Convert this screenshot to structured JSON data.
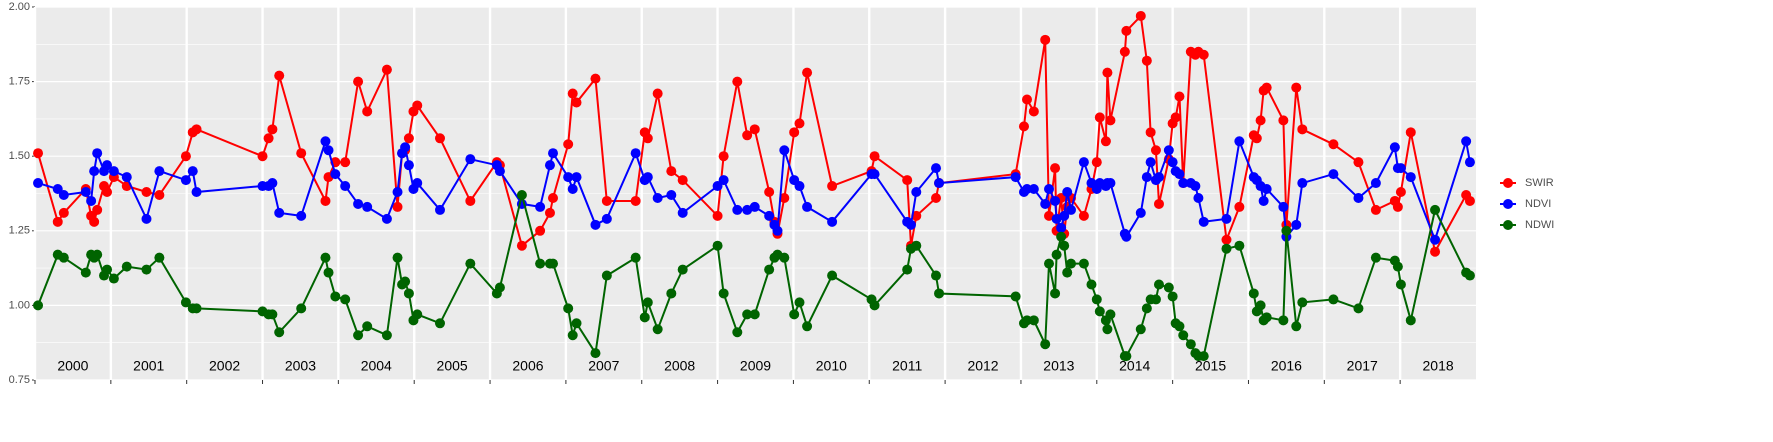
{
  "chart_data": {
    "type": "line",
    "x": [
      2000.04,
      2000.3,
      2000.38,
      2000.67,
      2000.74,
      2000.78,
      2000.82,
      2000.91,
      2000.95,
      2001.04,
      2001.21,
      2001.47,
      2001.64,
      2001.99,
      2002.08,
      2002.13,
      2003.0,
      2003.08,
      2003.13,
      2003.22,
      2003.51,
      2003.83,
      2003.87,
      2003.96,
      2004.09,
      2004.26,
      2004.38,
      2004.64,
      2004.78,
      2004.84,
      2004.88,
      2004.93,
      2004.99,
      2005.04,
      2005.34,
      2005.74,
      2006.09,
      2006.13,
      2006.42,
      2006.66,
      2006.79,
      2006.83,
      2007.03,
      2007.09,
      2007.14,
      2007.39,
      2007.54,
      2007.92,
      2008.04,
      2008.08,
      2008.21,
      2008.39,
      2008.54,
      2009.0,
      2009.08,
      2009.26,
      2009.39,
      2009.49,
      2009.68,
      2009.75,
      2009.79,
      2009.88,
      2010.01,
      2010.08,
      2010.18,
      2010.51,
      2011.03,
      2011.07,
      2011.5,
      2011.55,
      2011.62,
      2011.88,
      2011.92,
      2012.93,
      2013.04,
      2013.08,
      2013.17,
      2013.32,
      2013.37,
      2013.45,
      2013.47,
      2013.53,
      2013.57,
      2013.61,
      2013.66,
      2013.83,
      2013.93,
      2014.0,
      2014.04,
      2014.12,
      2014.14,
      2014.18,
      2014.37,
      2014.39,
      2014.58,
      2014.66,
      2014.71,
      2014.78,
      2014.82,
      2014.95,
      2015.0,
      2015.04,
      2015.09,
      2015.14,
      2015.24,
      2015.3,
      2015.34,
      2015.41,
      2015.71,
      2015.88,
      2016.07,
      2016.11,
      2016.16,
      2016.2,
      2016.24,
      2016.46,
      2016.5,
      2016.63,
      2016.71,
      2017.12,
      2017.45,
      2017.68,
      2017.93,
      2017.97,
      2018.01,
      2018.14,
      2018.46,
      2018.87,
      2018.92
    ],
    "series": [
      {
        "name": "SWIR",
        "color": "#ff0000",
        "values": [
          1.51,
          1.28,
          1.31,
          1.39,
          1.3,
          1.28,
          1.32,
          1.4,
          1.38,
          1.43,
          1.4,
          1.38,
          1.37,
          1.5,
          1.58,
          1.59,
          1.5,
          1.56,
          1.59,
          1.77,
          1.51,
          1.35,
          1.43,
          1.48,
          1.48,
          1.75,
          1.65,
          1.79,
          1.33,
          1.51,
          1.52,
          1.56,
          1.65,
          1.67,
          1.56,
          1.35,
          1.48,
          1.47,
          1.2,
          1.25,
          1.31,
          1.36,
          1.54,
          1.71,
          1.68,
          1.76,
          1.35,
          1.35,
          1.58,
          1.56,
          1.71,
          1.45,
          1.42,
          1.3,
          1.5,
          1.75,
          1.57,
          1.59,
          1.38,
          1.28,
          1.24,
          1.36,
          1.58,
          1.61,
          1.78,
          1.4,
          1.45,
          1.5,
          1.42,
          1.2,
          1.3,
          1.36,
          1.41,
          1.44,
          1.6,
          1.69,
          1.65,
          1.89,
          1.3,
          1.46,
          1.25,
          1.36,
          1.24,
          1.33,
          1.36,
          1.3,
          1.39,
          1.48,
          1.63,
          1.55,
          1.78,
          1.62,
          1.85,
          1.92,
          1.97,
          1.82,
          1.58,
          1.52,
          1.34,
          1.49,
          1.61,
          1.63,
          1.7,
          1.41,
          1.85,
          1.84,
          1.85,
          1.84,
          1.22,
          1.33,
          1.57,
          1.56,
          1.62,
          1.72,
          1.73,
          1.62,
          1.27,
          1.73,
          1.59,
          1.54,
          1.48,
          1.32,
          1.35,
          1.33,
          1.38,
          1.58,
          1.18,
          1.37,
          1.35
        ]
      },
      {
        "name": "NDVI",
        "color": "#0000ff",
        "values": [
          1.41,
          1.39,
          1.37,
          1.38,
          1.35,
          1.45,
          1.51,
          1.45,
          1.47,
          1.45,
          1.43,
          1.29,
          1.45,
          1.42,
          1.45,
          1.38,
          1.4,
          1.4,
          1.41,
          1.31,
          1.3,
          1.55,
          1.52,
          1.44,
          1.4,
          1.34,
          1.33,
          1.29,
          1.38,
          1.51,
          1.53,
          1.47,
          1.39,
          1.41,
          1.32,
          1.49,
          1.47,
          1.45,
          1.34,
          1.33,
          1.47,
          1.51,
          1.43,
          1.39,
          1.43,
          1.27,
          1.29,
          1.51,
          1.42,
          1.43,
          1.36,
          1.37,
          1.31,
          1.4,
          1.42,
          1.32,
          1.32,
          1.33,
          1.3,
          1.27,
          1.25,
          1.52,
          1.42,
          1.4,
          1.33,
          1.28,
          1.44,
          1.44,
          1.28,
          1.27,
          1.38,
          1.46,
          1.41,
          1.43,
          1.38,
          1.39,
          1.39,
          1.34,
          1.39,
          1.35,
          1.29,
          1.26,
          1.3,
          1.38,
          1.32,
          1.48,
          1.41,
          1.39,
          1.41,
          1.4,
          1.41,
          1.41,
          1.24,
          1.23,
          1.31,
          1.43,
          1.48,
          1.42,
          1.43,
          1.52,
          1.48,
          1.45,
          1.44,
          1.41,
          1.41,
          1.4,
          1.36,
          1.28,
          1.29,
          1.55,
          1.43,
          1.42,
          1.4,
          1.35,
          1.39,
          1.33,
          1.23,
          1.27,
          1.41,
          1.44,
          1.36,
          1.41,
          1.53,
          1.46,
          1.46,
          1.43,
          1.22,
          1.55,
          1.48
        ]
      },
      {
        "name": "NDWI",
        "color": "#006400",
        "values": [
          1.0,
          1.17,
          1.16,
          1.11,
          1.17,
          1.16,
          1.17,
          1.1,
          1.12,
          1.09,
          1.13,
          1.12,
          1.16,
          1.01,
          0.99,
          0.99,
          0.98,
          0.97,
          0.97,
          0.91,
          0.99,
          1.16,
          1.11,
          1.03,
          1.02,
          0.9,
          0.93,
          0.9,
          1.16,
          1.07,
          1.08,
          1.04,
          0.95,
          0.97,
          0.94,
          1.14,
          1.04,
          1.06,
          1.37,
          1.14,
          1.14,
          1.14,
          0.99,
          0.9,
          0.94,
          0.84,
          1.1,
          1.16,
          0.96,
          1.01,
          0.92,
          1.04,
          1.12,
          1.2,
          1.04,
          0.91,
          0.97,
          0.97,
          1.12,
          1.16,
          1.17,
          1.16,
          0.97,
          1.01,
          0.93,
          1.1,
          1.02,
          1.0,
          1.12,
          1.19,
          1.2,
          1.1,
          1.04,
          1.03,
          0.94,
          0.95,
          0.95,
          0.87,
          1.14,
          1.04,
          1.17,
          1.23,
          1.2,
          1.11,
          1.14,
          1.14,
          1.07,
          1.02,
          0.98,
          0.95,
          0.92,
          0.97,
          0.83,
          0.83,
          0.92,
          0.99,
          1.02,
          1.02,
          1.07,
          1.06,
          1.03,
          0.94,
          0.93,
          0.9,
          0.87,
          0.84,
          0.83,
          0.83,
          1.19,
          1.2,
          1.04,
          0.98,
          1.0,
          0.95,
          0.96,
          0.95,
          1.25,
          0.93,
          1.01,
          1.02,
          0.99,
          1.16,
          1.15,
          1.13,
          1.07,
          0.95,
          1.32,
          1.11,
          1.1
        ]
      }
    ],
    "xlim": [
      2000,
      2019
    ],
    "xticks": [
      2000,
      2001,
      2002,
      2003,
      2004,
      2005,
      2006,
      2007,
      2008,
      2009,
      2010,
      2011,
      2012,
      2013,
      2014,
      2015,
      2016,
      2017,
      2018
    ],
    "ylim": [
      0.75,
      2.0
    ],
    "yticks": [
      {
        "value": 0.75,
        "label": "0.75"
      },
      {
        "value": 1.0,
        "label": "1.00"
      },
      {
        "value": 1.25,
        "label": "1.25"
      },
      {
        "value": 1.5,
        "label": "1.50"
      },
      {
        "value": 1.75,
        "label": "1.75"
      },
      {
        "value": 2.0,
        "label": "2.00"
      }
    ],
    "grid": true,
    "legend": "right"
  }
}
